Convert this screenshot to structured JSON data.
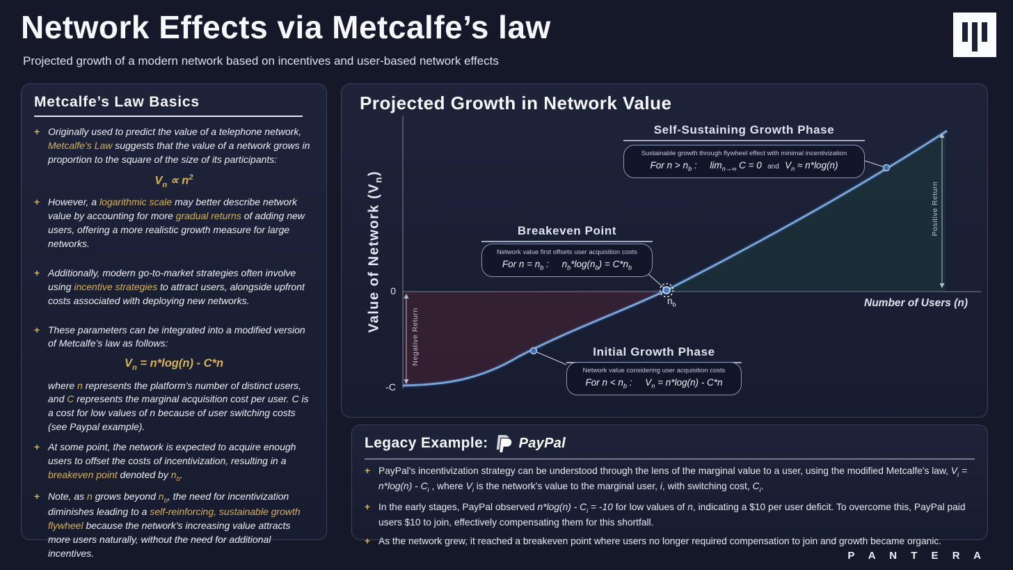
{
  "header": {
    "title": "Network Effects via Metcalfe’s law",
    "subtitle": "Projected growth of a modern network based on incentives and user-based network effects",
    "brand_footer": "P A N T E R A"
  },
  "colors": {
    "background": "#141829",
    "panel": "#1a2033",
    "accent_gold": "#d9b156",
    "curve_blue": "#7ba4d6",
    "negative_fill": "#6b2433",
    "positive_fill": "#1e5040",
    "zero_line": "#596175"
  },
  "left_panel": {
    "title": "Metcalfe’s Law Basics",
    "blocks": [
      {
        "type": "bullet",
        "segs": [
          {
            "t": "Originally used to predict the value of a telephone network, "
          },
          {
            "t": "Metcalfe’s Law",
            "hl": true
          },
          {
            "t": " suggests that the value of a network grows in proportion to the square of the size of its participants:"
          }
        ]
      },
      {
        "type": "formula",
        "segs": [
          {
            "t": "V"
          },
          {
            "t": "n",
            "sub": true
          },
          {
            "t": " ∝ n"
          },
          {
            "t": "2",
            "sup": true
          }
        ]
      },
      {
        "type": "bullet",
        "segs": [
          {
            "t": "However, a "
          },
          {
            "t": "logarithmic scale",
            "hl": true
          },
          {
            "t": " may better describe network value by accounting for more "
          },
          {
            "t": "gradual returns",
            "hl": true
          },
          {
            "t": " of adding new users, offering a more realistic growth measure for large networks."
          }
        ]
      },
      {
        "type": "spacer"
      },
      {
        "type": "bullet",
        "segs": [
          {
            "t": "Additionally, modern go-to-market strategies often involve using "
          },
          {
            "t": "incentive strategies",
            "hl": true
          },
          {
            "t": " to attract users, alongside upfront costs associated with deploying new networks."
          }
        ]
      },
      {
        "type": "spacer"
      },
      {
        "type": "bullet",
        "segs": [
          {
            "t": "These parameters can be integrated into a modified version of Metcalfe’s law as follows:"
          }
        ]
      },
      {
        "type": "formula",
        "segs": [
          {
            "t": "V"
          },
          {
            "t": "n",
            "sub": true
          },
          {
            "t": " = n*log(n) - C*n"
          }
        ]
      },
      {
        "type": "para",
        "segs": [
          {
            "t": "where "
          },
          {
            "t": "n",
            "hl": true
          },
          {
            "t": " represents the platform’s number of distinct users, and "
          },
          {
            "t": "C",
            "hl": true
          },
          {
            "t": " represents the marginal acquisition cost per user. C is a cost for low values of n because of user switching costs (see Paypal example)."
          }
        ]
      },
      {
        "type": "bullet",
        "segs": [
          {
            "t": "At some point, the network is expected to acquire enough users to offset the costs of incentivization, resulting in a "
          },
          {
            "t": "breakeven point",
            "hl": true
          },
          {
            "t": " denoted by "
          },
          {
            "t": "n",
            "hl": true
          },
          {
            "t": "b",
            "hl": true,
            "sub": true
          },
          {
            "t": "."
          }
        ]
      },
      {
        "type": "bullet",
        "segs": [
          {
            "t": "Note, as "
          },
          {
            "t": "n",
            "hl": true
          },
          {
            "t": " grows beyond "
          },
          {
            "t": "n",
            "hl": true
          },
          {
            "t": "b",
            "hl": true,
            "sub": true
          },
          {
            "t": ", the need for incentivization diminishes leading to a "
          },
          {
            "t": "self-reinforcing, sustainable growth flywheel",
            "hl": true
          },
          {
            "t": " because the network’s increasing value attracts more users naturally, without the need for additional incentives."
          }
        ]
      }
    ]
  },
  "chart": {
    "title": "Projected Growth in Network Value",
    "x_label": "Number of Users (n)",
    "y_label_segs": [
      {
        "t": "Value of Network (V"
      },
      {
        "t": "n",
        "sub": true
      },
      {
        "t": ")"
      }
    ],
    "tick_zero": "0",
    "tick_neg_c": "-C",
    "negative_region_label": "Negative  Return",
    "positive_region_label": "Positive  Return",
    "breakeven_point_segs": [
      {
        "t": "n"
      },
      {
        "t": "b",
        "sub": true
      }
    ],
    "annotations": {
      "self_sustaining": {
        "heading": "Self-Sustaining Growth Phase",
        "note": "Sustainable growth through flywheel effect with minimal incentivization",
        "formula_segs": [
          {
            "t": "For n > n"
          },
          {
            "t": "b",
            "sub": true
          },
          {
            "t": " :     lim"
          },
          {
            "t": "n→∞",
            "sub": true
          },
          {
            "t": " C = 0"
          },
          {
            "t": "   and   ",
            "small": true
          },
          {
            "t": "V"
          },
          {
            "t": "n",
            "sub": true
          },
          {
            "t": " ≈ n*log(n)"
          }
        ]
      },
      "breakeven": {
        "heading": "Breakeven Point",
        "note": "Network value first offsets user acquisition costs",
        "formula_segs": [
          {
            "t": "For n = n"
          },
          {
            "t": "b",
            "sub": true
          },
          {
            "t": " :     n"
          },
          {
            "t": "b",
            "sub": true
          },
          {
            "t": "*log(n"
          },
          {
            "t": "b",
            "sub": true
          },
          {
            "t": ") = C*n"
          },
          {
            "t": "b",
            "sub": true
          }
        ]
      },
      "initial_growth": {
        "heading": "Initial Growth Phase",
        "note": "Network value considering user acquisition costs",
        "formula_segs": [
          {
            "t": "For n < n"
          },
          {
            "t": "b",
            "sub": true
          },
          {
            "t": " :     V"
          },
          {
            "t": "n",
            "sub": true
          },
          {
            "t": " = n*log(n) - C*n"
          }
        ]
      }
    }
  },
  "chart_data": {
    "type": "line",
    "title": "Projected Growth in Network Value",
    "xlabel": "Number of Users (n)",
    "ylabel": "Value of Network (Vn)",
    "x_ticks": [
      "nb (breakeven)"
    ],
    "y_ticks": [
      "0",
      "-C"
    ],
    "grid": false,
    "legend_position": "none",
    "series": [
      {
        "name": "Vn = n*log(n) - C*n",
        "x_rel": [
          0,
          0.08,
          0.2,
          0.33,
          0.455,
          0.6,
          0.75,
          0.94
        ],
        "y_rel_in_C_units": [
          -1.0,
          -0.98,
          -0.72,
          -0.35,
          0,
          0.5,
          1.05,
          1.71
        ]
      }
    ],
    "key_points": [
      {
        "label": "Initial Growth Phase marker",
        "x_rel": 0.226,
        "y_rel_in_C_units": -0.63
      },
      {
        "label": "Breakeven Point (nb)",
        "x_rel": 0.455,
        "y_rel_in_C_units": 0
      },
      {
        "label": "Self-Sustaining Growth Phase marker",
        "x_rel": 0.835,
        "y_rel_in_C_units": 1.32
      }
    ],
    "regions": [
      {
        "name": "Negative Return",
        "where": "between curve and zero line, n < nb",
        "fill": "#6b2433"
      },
      {
        "name": "Positive Return",
        "where": "between curve and zero line, n > nb",
        "fill": "#1e5040"
      }
    ]
  },
  "legacy": {
    "title_prefix": "Legacy Example:",
    "brand": "PayPal",
    "bullets": [
      [
        {
          "t": "PayPal's incentivization strategy can be understood through the lens of the marginal value to a user, using the modified Metcalfe's law, "
        },
        {
          "t": "V",
          "it": true
        },
        {
          "t": "i",
          "sub": true,
          "it": true
        },
        {
          "t": " = n*log(n) - C",
          "it": true
        },
        {
          "t": "i",
          "sub": true,
          "it": true
        },
        {
          "t": " , where "
        },
        {
          "t": "V",
          "it": true
        },
        {
          "t": "i",
          "sub": true,
          "it": true
        },
        {
          "t": " is the network's value to the marginal user, "
        },
        {
          "t": "i",
          "it": true
        },
        {
          "t": ", with switching cost, "
        },
        {
          "t": "C",
          "it": true
        },
        {
          "t": "i",
          "sub": true,
          "it": true
        },
        {
          "t": "."
        }
      ],
      [
        {
          "t": "In the early stages, PayPal observed "
        },
        {
          "t": "n*log(n) - C",
          "it": true
        },
        {
          "t": "i",
          "sub": true,
          "it": true
        },
        {
          "t": " = -10",
          "it": true
        },
        {
          "t": " for low values of "
        },
        {
          "t": "n",
          "it": true
        },
        {
          "t": ", indicating a $10 per user deficit. To overcome this, PayPal paid users $10 to join, effectively compensating them for this shortfall."
        }
      ],
      [
        {
          "t": "As the network grew, it reached a breakeven point where users no longer required compensation to join and growth became organic."
        }
      ]
    ]
  }
}
